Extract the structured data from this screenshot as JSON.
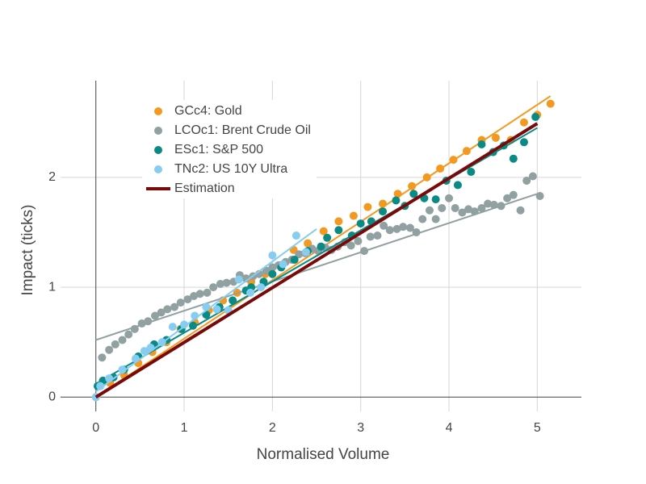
{
  "chart_data": {
    "type": "scatter",
    "xlabel": "Normalised Volume",
    "ylabel": "Impact (ticks)",
    "xlim": [
      -0.4,
      5.5
    ],
    "ylim": [
      -0.13,
      2.88
    ],
    "xticks": [
      0,
      1,
      2,
      3,
      4,
      5
    ],
    "yticks": [
      0,
      1,
      2
    ],
    "grid": true,
    "legend": "upper left",
    "series": [
      {
        "name": "GCc4: Gold",
        "color": "#f4991f",
        "x": [
          0.0,
          0.16,
          0.32,
          0.48,
          0.64,
          0.8,
          0.96,
          1.12,
          1.28,
          1.44,
          1.6,
          1.76,
          1.92,
          2.08,
          2.24,
          2.4,
          2.58,
          2.75,
          2.92,
          3.08,
          3.25,
          3.42,
          3.58,
          3.75,
          3.9,
          4.05,
          4.2,
          4.37,
          4.53,
          4.7,
          4.85,
          5.0,
          5.15
        ],
        "values": [
          0.0,
          0.13,
          0.2,
          0.31,
          0.41,
          0.5,
          0.62,
          0.68,
          0.79,
          0.88,
          0.95,
          1.05,
          1.12,
          1.2,
          1.34,
          1.4,
          1.51,
          1.6,
          1.65,
          1.73,
          1.76,
          1.85,
          1.92,
          2.0,
          2.08,
          2.16,
          2.24,
          2.34,
          2.36,
          2.34,
          2.5,
          2.57,
          2.67
        ],
        "fit_x": [
          0,
          5.15
        ],
        "fit_values": [
          0.0,
          2.74
        ]
      },
      {
        "name": "LCOc1: Brent Crude Oil",
        "color": "#91a0a0",
        "x": [
          0.07,
          0.15,
          0.22,
          0.3,
          0.37,
          0.44,
          0.52,
          0.59,
          0.67,
          0.74,
          0.81,
          0.89,
          0.96,
          1.04,
          1.11,
          1.18,
          1.26,
          1.33,
          1.41,
          1.48,
          1.56,
          1.63,
          1.7,
          1.78,
          1.85,
          1.93,
          2.0,
          2.07,
          2.15,
          2.22,
          2.3,
          2.37,
          2.45,
          2.52,
          2.6,
          2.67,
          2.74,
          2.82,
          2.89,
          2.97,
          3.04,
          3.11,
          3.19,
          3.26,
          3.33,
          3.41,
          3.48,
          3.56,
          3.63,
          3.7,
          3.78,
          3.85,
          3.92,
          4.0,
          4.07,
          4.15,
          4.22,
          4.29,
          4.37,
          4.44,
          4.51,
          4.59,
          4.66,
          4.73,
          4.81,
          4.88,
          4.95,
          5.03
        ],
        "values": [
          0.36,
          0.43,
          0.48,
          0.52,
          0.57,
          0.62,
          0.67,
          0.69,
          0.74,
          0.77,
          0.8,
          0.82,
          0.86,
          0.89,
          0.92,
          0.94,
          0.95,
          1.0,
          1.03,
          1.04,
          1.05,
          1.11,
          1.08,
          1.1,
          1.12,
          1.15,
          1.18,
          1.2,
          1.23,
          1.25,
          1.3,
          1.31,
          1.35,
          1.33,
          1.36,
          1.34,
          1.37,
          1.41,
          1.38,
          1.42,
          1.33,
          1.46,
          1.47,
          1.56,
          1.52,
          1.53,
          1.55,
          1.54,
          1.5,
          1.62,
          1.7,
          1.62,
          1.72,
          1.81,
          1.72,
          1.68,
          1.71,
          1.69,
          1.72,
          1.76,
          1.75,
          1.74,
          1.81,
          1.84,
          1.7,
          1.97,
          2.01,
          1.83
        ],
        "fit_x": [
          0,
          5.0
        ],
        "fit_values": [
          0.52,
          1.85
        ]
      },
      {
        "name": "ESc1: S&P 500",
        "color": "#0a8a84",
        "x": [
          0.02,
          0.08,
          0.2,
          0.32,
          0.48,
          0.66,
          0.8,
          0.97,
          1.1,
          1.25,
          1.4,
          1.55,
          1.7,
          1.76,
          1.9,
          2.0,
          2.1,
          2.25,
          2.4,
          2.55,
          2.62,
          2.75,
          2.9,
          3.0,
          3.12,
          3.25,
          3.4,
          3.5,
          3.6,
          3.72,
          3.85,
          3.97,
          4.1,
          4.25,
          4.37,
          4.5,
          4.62,
          4.73,
          4.85,
          4.98
        ],
        "values": [
          0.1,
          0.15,
          0.18,
          0.25,
          0.37,
          0.48,
          0.52,
          0.62,
          0.65,
          0.75,
          0.82,
          0.88,
          0.97,
          1.0,
          1.05,
          1.12,
          1.18,
          1.25,
          1.33,
          1.37,
          1.45,
          1.52,
          1.47,
          1.58,
          1.6,
          1.69,
          1.79,
          1.74,
          1.85,
          1.81,
          1.8,
          1.97,
          1.93,
          2.05,
          2.3,
          2.23,
          2.29,
          2.17,
          2.32,
          2.55
        ],
        "fit_x": [
          0,
          5.0
        ],
        "fit_values": [
          0.12,
          2.45
        ]
      },
      {
        "name": "TNc2: US 10Y Ultra",
        "color": "#86cdf2",
        "x": [
          0.0,
          0.05,
          0.15,
          0.3,
          0.45,
          0.55,
          0.62,
          0.75,
          0.87,
          1.0,
          1.12,
          1.25,
          1.37,
          1.5,
          1.62,
          1.75,
          1.87,
          2.0,
          2.12,
          2.27,
          2.38
        ],
        "values": [
          0.0,
          0.1,
          0.17,
          0.25,
          0.35,
          0.42,
          0.45,
          0.5,
          0.64,
          0.66,
          0.74,
          0.82,
          0.8,
          0.79,
          1.07,
          0.95,
          1.0,
          1.29,
          1.21,
          1.47,
          1.32
        ],
        "fit_x": [
          0,
          2.5
        ],
        "fit_values": [
          0.05,
          1.53
        ]
      },
      {
        "name": "Estimation",
        "color": "#7a0a0a",
        "mode": "line",
        "x": [
          0,
          5.0
        ],
        "values": [
          0.0,
          2.49
        ]
      }
    ]
  }
}
